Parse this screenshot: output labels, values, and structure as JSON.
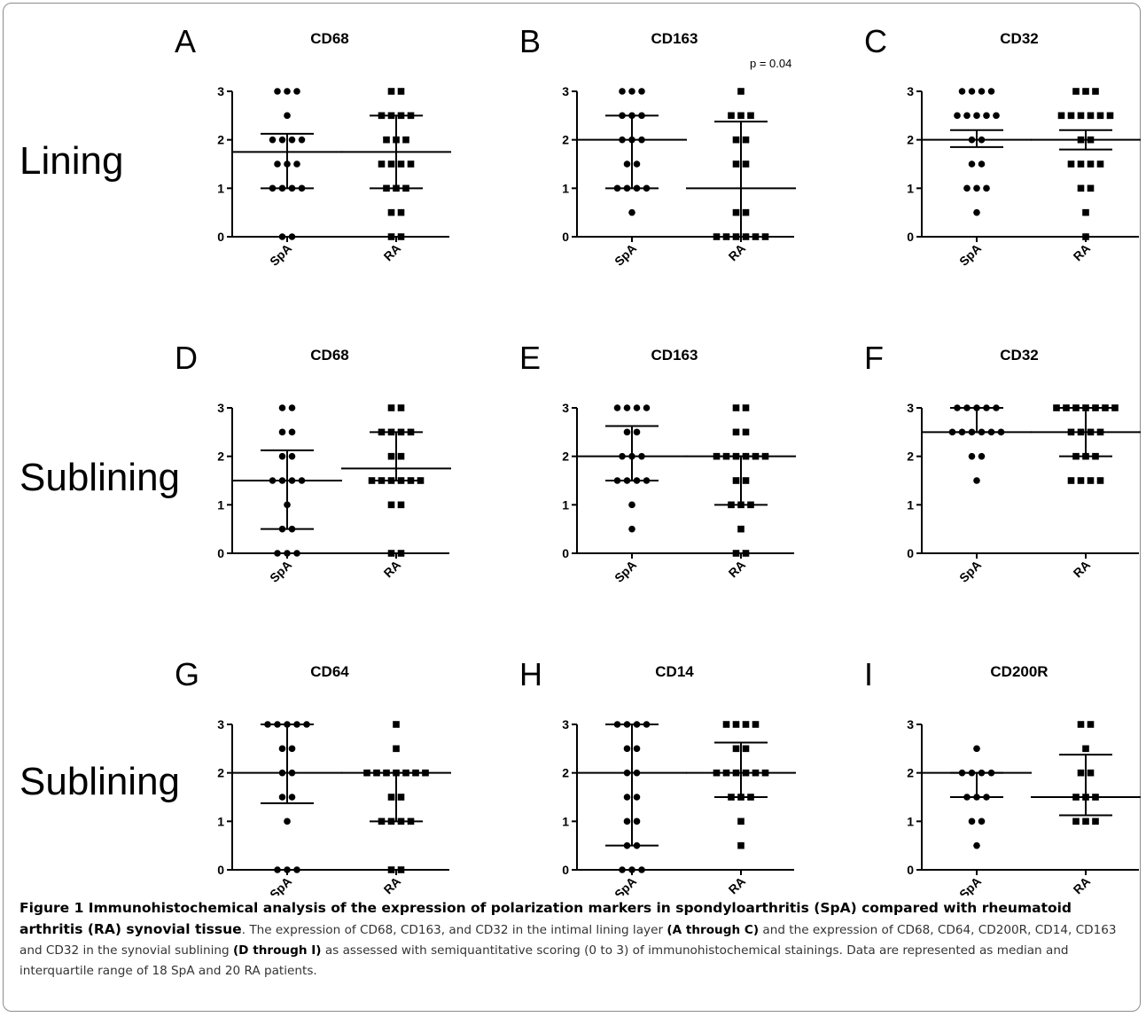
{
  "row_labels": [
    "Lining",
    "Sublining",
    "Sublining"
  ],
  "caption": {
    "figure_title": "Figure 1 Immunohistochemical analysis of the expression of polarization markers in spondyloarthritis (SpA) compared with rheumatoid arthritis (RA) synovial tissue",
    "text_1": ". The expression of CD68, CD163, and CD32 in the intimal lining layer ",
    "ref_1": "(A through C)",
    "text_2": " and the expression of CD68, CD64, CD200R, CD14, CD163 and CD32 in the synovial sublining ",
    "ref_2": "(D through I)",
    "text_3": " as assessed with semiquantitative scoring (0 to 3) of immunohistochemical stainings. Data are represented as median and interquartile range of 18 SpA and 20 RA patients."
  },
  "chart_data": [
    {
      "type": "scatter",
      "panel": "A",
      "title": "CD68",
      "annotation": "",
      "categories": [
        "SpA",
        "RA"
      ],
      "ylim": [
        0,
        3
      ],
      "yticks": [
        "0",
        "1",
        "2",
        "3"
      ],
      "series": [
        {
          "group": "SpA",
          "marker": "circle",
          "values": [
            3,
            3,
            3,
            2.5,
            2,
            2,
            2,
            2,
            1.5,
            1.5,
            1.5,
            1,
            1,
            1,
            1,
            0,
            0
          ],
          "median": 1.75,
          "iqr": [
            1,
            2.125
          ]
        },
        {
          "group": "RA",
          "marker": "square",
          "values": [
            3,
            3,
            2.5,
            2.5,
            2.5,
            2.5,
            2,
            2,
            2,
            1.5,
            1.5,
            1.5,
            1.5,
            1,
            1,
            1,
            0.5,
            0.5,
            0,
            0
          ],
          "median": 1.75,
          "iqr": [
            1,
            2.5
          ]
        }
      ]
    },
    {
      "type": "scatter",
      "panel": "B",
      "title": "CD163",
      "annotation": "p = 0.04",
      "categories": [
        "SpA",
        "RA"
      ],
      "ylim": [
        0,
        3
      ],
      "yticks": [
        "0",
        "1",
        "2",
        "3"
      ],
      "series": [
        {
          "group": "SpA",
          "marker": "circle",
          "values": [
            3,
            3,
            3,
            2.5,
            2.5,
            2.5,
            2,
            2,
            2,
            1.5,
            1.5,
            1,
            1,
            1,
            1,
            0.5
          ],
          "median": 2,
          "iqr": [
            1,
            2.5
          ]
        },
        {
          "group": "RA",
          "marker": "square",
          "values": [
            3,
            2.5,
            2.5,
            2.5,
            2,
            2,
            1.5,
            1.5,
            0.5,
            0.5,
            0,
            0,
            0,
            0,
            0,
            0
          ],
          "median": 1,
          "iqr": [
            0,
            2.375
          ]
        }
      ]
    },
    {
      "type": "scatter",
      "panel": "C",
      "title": "CD32",
      "annotation": "",
      "categories": [
        "SpA",
        "RA"
      ],
      "ylim": [
        0,
        3
      ],
      "yticks": [
        "0",
        "1",
        "2",
        "3"
      ],
      "series": [
        {
          "group": "SpA",
          "marker": "circle",
          "values": [
            3,
            3,
            3,
            3,
            2.5,
            2.5,
            2.5,
            2.5,
            2.5,
            2,
            2,
            1.5,
            1.5,
            1,
            1,
            1,
            0.5
          ],
          "median": 2,
          "iqr": [
            1.85,
            2.2
          ]
        },
        {
          "group": "RA",
          "marker": "square",
          "values": [
            3,
            3,
            3,
            2.5,
            2.5,
            2.5,
            2.5,
            2.5,
            2.5,
            2,
            2,
            1.5,
            1.5,
            1.5,
            1.5,
            1,
            1,
            0.5,
            0
          ],
          "median": 2,
          "iqr": [
            1.8,
            2.2
          ]
        }
      ]
    },
    {
      "type": "scatter",
      "panel": "D",
      "title": "CD68",
      "annotation": "",
      "categories": [
        "SpA",
        "RA"
      ],
      "ylim": [
        0,
        3
      ],
      "yticks": [
        "0",
        "1",
        "2",
        "3"
      ],
      "series": [
        {
          "group": "SpA",
          "marker": "circle",
          "values": [
            3,
            3,
            2.5,
            2.5,
            2,
            2,
            1.5,
            1.5,
            1.5,
            1.5,
            1,
            0.5,
            0.5,
            0,
            0,
            0
          ],
          "median": 1.5,
          "iqr": [
            0.5,
            2.125
          ]
        },
        {
          "group": "RA",
          "marker": "square",
          "values": [
            3,
            3,
            2.5,
            2.5,
            2.5,
            2.5,
            2,
            2,
            1.5,
            1.5,
            1.5,
            1.5,
            1.5,
            1.5,
            1,
            1,
            0,
            0
          ],
          "median": 1.75,
          "iqr": [
            1.5,
            2.5
          ]
        }
      ]
    },
    {
      "type": "scatter",
      "panel": "E",
      "title": "CD163",
      "annotation": "",
      "categories": [
        "SpA",
        "RA"
      ],
      "ylim": [
        0,
        3
      ],
      "yticks": [
        "0",
        "1",
        "2",
        "3"
      ],
      "series": [
        {
          "group": "SpA",
          "marker": "circle",
          "values": [
            3,
            3,
            3,
            3,
            2.5,
            2.5,
            2,
            2,
            2,
            1.5,
            1.5,
            1.5,
            1.5,
            1,
            0.5
          ],
          "median": 2,
          "iqr": [
            1.5,
            2.625
          ]
        },
        {
          "group": "RA",
          "marker": "square",
          "values": [
            3,
            3,
            2.5,
            2.5,
            2,
            2,
            2,
            2,
            2,
            2,
            1.5,
            1.5,
            1,
            1,
            1,
            0.5,
            0,
            0
          ],
          "median": 2,
          "iqr": [
            1,
            2
          ]
        }
      ]
    },
    {
      "type": "scatter",
      "panel": "F",
      "title": "CD32",
      "annotation": "",
      "categories": [
        "SpA",
        "RA"
      ],
      "ylim": [
        0,
        3
      ],
      "yticks": [
        "0",
        "1",
        "2",
        "3"
      ],
      "series": [
        {
          "group": "SpA",
          "marker": "circle",
          "values": [
            3,
            3,
            3,
            3,
            3,
            2.5,
            2.5,
            2.5,
            2.5,
            2.5,
            2.5,
            2,
            2,
            1.5
          ],
          "median": 2.5,
          "iqr": [
            2.5,
            3
          ]
        },
        {
          "group": "RA",
          "marker": "square",
          "values": [
            3,
            3,
            3,
            3,
            3,
            3,
            3,
            2.5,
            2.5,
            2.5,
            2.5,
            2,
            2,
            2,
            1.5,
            1.5,
            1.5,
            1.5
          ],
          "median": 2.5,
          "iqr": [
            2,
            3
          ]
        }
      ]
    },
    {
      "type": "scatter",
      "panel": "G",
      "title": "CD64",
      "annotation": "",
      "categories": [
        "SpA",
        "RA"
      ],
      "ylim": [
        0,
        3
      ],
      "yticks": [
        "0",
        "1",
        "2",
        "3"
      ],
      "series": [
        {
          "group": "SpA",
          "marker": "circle",
          "values": [
            3,
            3,
            3,
            3,
            3,
            2.5,
            2.5,
            2,
            2,
            1.5,
            1.5,
            1,
            0,
            0,
            0
          ],
          "median": 2,
          "iqr": [
            1.375,
            3
          ]
        },
        {
          "group": "RA",
          "marker": "square",
          "values": [
            3,
            2.5,
            2,
            2,
            2,
            2,
            2,
            2,
            2,
            1.5,
            1.5,
            1,
            1,
            1,
            1,
            0,
            0
          ],
          "median": 2,
          "iqr": [
            1,
            2
          ]
        }
      ]
    },
    {
      "type": "scatter",
      "panel": "H",
      "title": "CD14",
      "annotation": "",
      "categories": [
        "SpA",
        "RA"
      ],
      "ylim": [
        0,
        3
      ],
      "yticks": [
        "0",
        "1",
        "2",
        "3"
      ],
      "series": [
        {
          "group": "SpA",
          "marker": "circle",
          "values": [
            3,
            3,
            3,
            3,
            2.5,
            2.5,
            2,
            2,
            1.5,
            1.5,
            1,
            1,
            0.5,
            0.5,
            0,
            0,
            0
          ],
          "median": 2,
          "iqr": [
            0.5,
            3
          ]
        },
        {
          "group": "RA",
          "marker": "square",
          "values": [
            3,
            3,
            3,
            3,
            2.5,
            2.5,
            2,
            2,
            2,
            2,
            2,
            2,
            1.5,
            1.5,
            1.5,
            1,
            0.5
          ],
          "median": 2,
          "iqr": [
            1.5,
            2.625
          ]
        }
      ]
    },
    {
      "type": "scatter",
      "panel": "I",
      "title": "CD200R",
      "annotation": "",
      "categories": [
        "SpA",
        "RA"
      ],
      "ylim": [
        0,
        3
      ],
      "yticks": [
        "0",
        "1",
        "2",
        "3"
      ],
      "series": [
        {
          "group": "SpA",
          "marker": "circle",
          "values": [
            2.5,
            2,
            2,
            2,
            2,
            1.5,
            1.5,
            1.5,
            1,
            1,
            0.5
          ],
          "median": 2,
          "iqr": [
            1.5,
            2
          ]
        },
        {
          "group": "RA",
          "marker": "square",
          "values": [
            3,
            3,
            2.5,
            2,
            2,
            1.5,
            1.5,
            1.5,
            1,
            1,
            1
          ],
          "median": 1.5,
          "iqr": [
            1.125,
            2.375
          ]
        }
      ]
    }
  ]
}
